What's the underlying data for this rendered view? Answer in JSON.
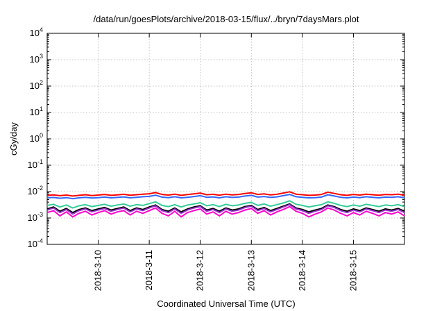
{
  "chart_data": {
    "type": "line",
    "title": "/data/run/goesPlots/archive/2018-03-15/flux/../bryn/7daysMars.plot",
    "xlabel": "Coordinated Universal Time (UTC)",
    "ylabel": "cGy/day",
    "yscale": "log",
    "ylim": [
      0.0001,
      10000
    ],
    "y_ticks": [
      {
        "base": "10",
        "exp": "-4"
      },
      {
        "base": "10",
        "exp": "-3"
      },
      {
        "base": "10",
        "exp": "-2"
      },
      {
        "base": "10",
        "exp": "-1"
      },
      {
        "base": "10",
        "exp": "0"
      },
      {
        "base": "10",
        "exp": "1"
      },
      {
        "base": "10",
        "exp": "2"
      },
      {
        "base": "10",
        "exp": "3"
      },
      {
        "base": "10",
        "exp": "4"
      }
    ],
    "xlim": [
      0,
      7
    ],
    "x_ticks": [
      {
        "label": "2018-3-10",
        "x": 1
      },
      {
        "label": "2018-3-11",
        "x": 2
      },
      {
        "label": "2018-3-12",
        "x": 3
      },
      {
        "label": "2018-3-13",
        "x": 4
      },
      {
        "label": "2018-3-14",
        "x": 5
      },
      {
        "label": "2018-3-15",
        "x": 6
      }
    ],
    "grid": true,
    "x": [
      0.0,
      0.125,
      0.25,
      0.375,
      0.5,
      0.625,
      0.75,
      0.875,
      1.0,
      1.125,
      1.25,
      1.375,
      1.5,
      1.625,
      1.75,
      1.875,
      2.0,
      2.125,
      2.25,
      2.375,
      2.5,
      2.625,
      2.75,
      2.875,
      3.0,
      3.125,
      3.25,
      3.375,
      3.5,
      3.625,
      3.75,
      3.875,
      4.0,
      4.125,
      4.25,
      4.375,
      4.5,
      4.625,
      4.75,
      4.875,
      5.0,
      5.125,
      5.25,
      5.375,
      5.5,
      5.625,
      5.75,
      5.875,
      6.0,
      6.125,
      6.25,
      6.375,
      6.5,
      6.625,
      6.75,
      6.875,
      7.0
    ],
    "series": [
      {
        "name": "red",
        "color": "#ff0000",
        "values": [
          0.0072,
          0.0075,
          0.007,
          0.0074,
          0.0068,
          0.0072,
          0.0076,
          0.0071,
          0.0074,
          0.0078,
          0.0072,
          0.0075,
          0.0079,
          0.0073,
          0.0076,
          0.008,
          0.0083,
          0.0092,
          0.0078,
          0.0074,
          0.008,
          0.0072,
          0.0077,
          0.0082,
          0.0088,
          0.0076,
          0.0079,
          0.0073,
          0.008,
          0.0075,
          0.0078,
          0.0085,
          0.009,
          0.0078,
          0.0082,
          0.0075,
          0.0079,
          0.0088,
          0.0098,
          0.008,
          0.0076,
          0.0072,
          0.0074,
          0.0078,
          0.0095,
          0.0085,
          0.0076,
          0.0072,
          0.0078,
          0.0074,
          0.008,
          0.0076,
          0.0073,
          0.0078,
          0.0076,
          0.008,
          0.0072
        ]
      },
      {
        "name": "blue",
        "color": "#3366ff",
        "values": [
          0.0058,
          0.006,
          0.0056,
          0.0059,
          0.0054,
          0.0058,
          0.0061,
          0.0057,
          0.0059,
          0.0062,
          0.0058,
          0.006,
          0.0063,
          0.0058,
          0.0061,
          0.0064,
          0.0066,
          0.0073,
          0.0062,
          0.0059,
          0.0064,
          0.0058,
          0.0061,
          0.0065,
          0.007,
          0.0061,
          0.0063,
          0.0058,
          0.0064,
          0.006,
          0.0062,
          0.0068,
          0.0072,
          0.0062,
          0.0065,
          0.006,
          0.0063,
          0.007,
          0.0078,
          0.0064,
          0.0061,
          0.0058,
          0.0059,
          0.0062,
          0.0076,
          0.0068,
          0.0061,
          0.0058,
          0.0062,
          0.0059,
          0.0064,
          0.0061,
          0.0058,
          0.0062,
          0.0061,
          0.0064,
          0.0058
        ]
      },
      {
        "name": "green",
        "color": "#33cc99",
        "values": [
          0.003,
          0.0033,
          0.0026,
          0.0031,
          0.0024,
          0.0029,
          0.0032,
          0.0027,
          0.003,
          0.0033,
          0.0028,
          0.0031,
          0.0034,
          0.0028,
          0.0032,
          0.003,
          0.0035,
          0.0041,
          0.003,
          0.0027,
          0.0032,
          0.0026,
          0.0031,
          0.0034,
          0.0038,
          0.0029,
          0.0032,
          0.0027,
          0.0033,
          0.0029,
          0.0031,
          0.0036,
          0.0039,
          0.003,
          0.0034,
          0.0028,
          0.0032,
          0.0037,
          0.0045,
          0.0033,
          0.003,
          0.0026,
          0.0029,
          0.0032,
          0.0041,
          0.0036,
          0.003,
          0.0027,
          0.0031,
          0.0028,
          0.0033,
          0.003,
          0.0027,
          0.0031,
          0.0029,
          0.0032,
          0.0027
        ]
      },
      {
        "name": "black",
        "color": "#000000",
        "values": [
          0.0022,
          0.0026,
          0.0018,
          0.0023,
          0.0016,
          0.0021,
          0.0024,
          0.0019,
          0.0022,
          0.0025,
          0.002,
          0.0023,
          0.0026,
          0.0019,
          0.0024,
          0.0021,
          0.0026,
          0.0031,
          0.0021,
          0.0018,
          0.0024,
          0.0017,
          0.0022,
          0.0026,
          0.0029,
          0.002,
          0.0023,
          0.0018,
          0.0024,
          0.002,
          0.0022,
          0.0027,
          0.003,
          0.0021,
          0.0025,
          0.0019,
          0.0023,
          0.0028,
          0.0034,
          0.0024,
          0.0021,
          0.0017,
          0.002,
          0.0023,
          0.0031,
          0.0027,
          0.0021,
          0.0018,
          0.0022,
          0.0019,
          0.0024,
          0.0021,
          0.0018,
          0.0022,
          0.002,
          0.0023,
          0.0018
        ]
      },
      {
        "name": "purple",
        "color": "#9933cc",
        "values": [
          0.002,
          0.0024,
          0.0016,
          0.0021,
          0.0014,
          0.0019,
          0.0022,
          0.0017,
          0.002,
          0.0023,
          0.0018,
          0.0021,
          0.0024,
          0.0017,
          0.0022,
          0.0019,
          0.0024,
          0.0029,
          0.0019,
          0.0016,
          0.0022,
          0.0015,
          0.002,
          0.0024,
          0.0027,
          0.0018,
          0.0021,
          0.0016,
          0.0022,
          0.0018,
          0.002,
          0.0025,
          0.0028,
          0.0019,
          0.0023,
          0.0017,
          0.0021,
          0.0026,
          0.0032,
          0.0022,
          0.0019,
          0.0015,
          0.0018,
          0.0021,
          0.0029,
          0.0025,
          0.0019,
          0.0016,
          0.002,
          0.0017,
          0.0022,
          0.0019,
          0.0016,
          0.002,
          0.0018,
          0.0021,
          0.0016
        ]
      },
      {
        "name": "magenta",
        "color": "#ff00cc",
        "values": [
          0.0016,
          0.0019,
          0.0012,
          0.0017,
          0.0011,
          0.0015,
          0.0018,
          0.0013,
          0.0016,
          0.0019,
          0.0014,
          0.0017,
          0.0019,
          0.0013,
          0.0018,
          0.0015,
          0.0019,
          0.0024,
          0.0015,
          0.0012,
          0.0018,
          0.0011,
          0.0016,
          0.0019,
          0.0022,
          0.0014,
          0.0017,
          0.0012,
          0.0018,
          0.0014,
          0.0016,
          0.002,
          0.0023,
          0.0015,
          0.0019,
          0.0013,
          0.0017,
          0.0021,
          0.0027,
          0.0018,
          0.0015,
          0.0011,
          0.0014,
          0.0017,
          0.0024,
          0.002,
          0.0015,
          0.0012,
          0.0016,
          0.0013,
          0.0018,
          0.0015,
          0.0012,
          0.0016,
          0.0014,
          0.0017,
          0.0012
        ]
      }
    ]
  }
}
